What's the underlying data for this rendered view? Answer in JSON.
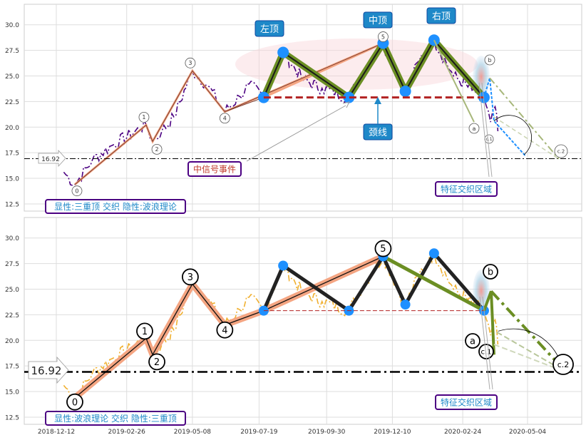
{
  "chart_data": [
    {
      "type": "line",
      "title": "",
      "ylim": [
        11.8,
        32.0
      ],
      "yticks": [
        12.5,
        15.0,
        17.5,
        20.0,
        22.5,
        25.0,
        27.5,
        30.0
      ],
      "grid": true,
      "price_series_color": "#4b0082",
      "wave_points": [
        {
          "x": "2019-01-01",
          "y": 14.4,
          "label": "0"
        },
        {
          "x": "2019-03-19",
          "y": 20.2,
          "label": "1"
        },
        {
          "x": "2019-03-26",
          "y": 18.6,
          "label": "2"
        },
        {
          "x": "2019-05-08",
          "y": 25.5,
          "label": "3"
        },
        {
          "x": "2019-06-12",
          "y": 21.5,
          "label": "4"
        },
        {
          "x": "2019-11-30",
          "y": 28.2,
          "label": "5"
        }
      ],
      "pattern_points": [
        {
          "x": "2019-07-24",
          "y": 22.9
        },
        {
          "x": "2019-08-14",
          "y": 27.3
        },
        {
          "x": "2019-10-24",
          "y": 22.9
        },
        {
          "x": "2019-11-30",
          "y": 28.2
        },
        {
          "x": "2019-12-24",
          "y": 23.5
        },
        {
          "x": "2020-01-24",
          "y": 28.5
        },
        {
          "x": "2020-03-18",
          "y": 22.9
        }
      ],
      "neckline": 22.9,
      "support_level": 16.92,
      "support_label": "16.92",
      "abc_labels": {
        "a": "a",
        "b": "b",
        "c1": "c.1",
        "c2": "c.2"
      },
      "annotations": {
        "left_top": "左顶",
        "middle_top": "中顶",
        "right_top": "右顶",
        "neckline": "颈线",
        "signal_event": "中信号事件",
        "feature_zone": "特征交织区域",
        "caption": "显性:三重顶 交织 隐性:波浪理论"
      },
      "colors": {
        "pattern_line": "#6b8e23",
        "pattern_core": "#1a1a1a",
        "pattern_node": "#1e90ff",
        "neckline": "#b22222",
        "label_box": "#1e88c8",
        "caption_border": "#4b0082",
        "caption_text": "#1e88c8",
        "signal_text": "#c0392b"
      }
    },
    {
      "type": "line",
      "title": "",
      "ylim": [
        11.8,
        32.0
      ],
      "yticks": [
        12.5,
        15.0,
        17.5,
        20.0,
        22.5,
        25.0,
        27.5,
        30.0
      ],
      "grid": true,
      "price_series_color": "#f0b030",
      "xticks": [
        "2018-12-12",
        "2019-02-26",
        "2019-05-08",
        "2019-07-19",
        "2019-09-30",
        "2019-12-10",
        "2020-02-24",
        "2020-05-04"
      ],
      "wave_points": [
        {
          "x": "2019-01-01",
          "y": 14.4,
          "label": "0"
        },
        {
          "x": "2019-03-19",
          "y": 20.2,
          "label": "1"
        },
        {
          "x": "2019-03-26",
          "y": 18.6,
          "label": "2"
        },
        {
          "x": "2019-05-08",
          "y": 25.5,
          "label": "3"
        },
        {
          "x": "2019-06-12",
          "y": 21.5,
          "label": "4"
        },
        {
          "x": "2019-11-30",
          "y": 28.2,
          "label": "5"
        }
      ],
      "pattern_points": [
        {
          "x": "2019-07-24",
          "y": 22.9
        },
        {
          "x": "2019-08-14",
          "y": 27.3
        },
        {
          "x": "2019-10-24",
          "y": 22.9
        },
        {
          "x": "2019-11-30",
          "y": 28.2
        },
        {
          "x": "2019-12-24",
          "y": 23.5
        },
        {
          "x": "2020-01-24",
          "y": 28.5
        },
        {
          "x": "2020-03-18",
          "y": 22.9
        }
      ],
      "neckline": 22.9,
      "support_level": 16.92,
      "support_label": "16.92",
      "abc_labels": {
        "a": "a",
        "b": "b",
        "c1": "c.1",
        "c2": "c.2"
      },
      "annotations": {
        "feature_zone": "特征交织区域",
        "caption": "显性:波浪理论 交织 隐性:三重顶"
      },
      "colors": {
        "wave_band": "#f4a582",
        "wave_line": "#111111",
        "pattern_core": "#222222",
        "pattern_line": "#6b8e23",
        "pattern_node": "#1e90ff",
        "neckline": "#b22222",
        "caption_border": "#4b0082",
        "caption_text": "#1e88c8"
      }
    }
  ]
}
